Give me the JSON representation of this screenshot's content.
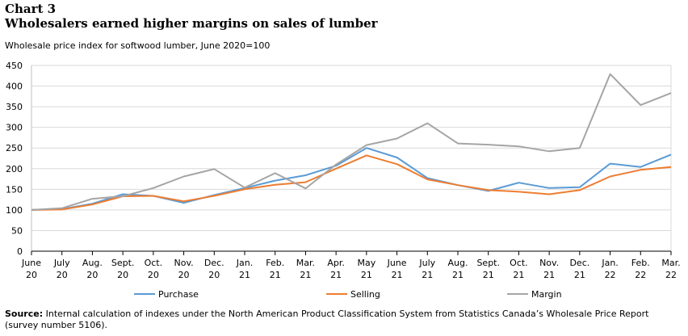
{
  "header": {
    "chart_label": "Chart 3",
    "title": "Wholesalers earned higher  margins on sales of lumber",
    "subtitle": "Wholesale price index for softwood lumber, June 2020=100"
  },
  "source": {
    "label": "Source:",
    "text": " Internal calculation of indexes under the North American Product Classification System from Statistics Canada’s Wholesale Price Report (survey number 5106)."
  },
  "chart_data": {
    "type": "line",
    "categories": [
      [
        "June",
        "20"
      ],
      [
        "July",
        "20"
      ],
      [
        "Aug.",
        "20"
      ],
      [
        "Sept.",
        "20"
      ],
      [
        "Oct.",
        "20"
      ],
      [
        "Nov.",
        "20"
      ],
      [
        "Dec.",
        "20"
      ],
      [
        "Jan.",
        "21"
      ],
      [
        "Feb.",
        "21"
      ],
      [
        "Mar.",
        "21"
      ],
      [
        "Apr.",
        "21"
      ],
      [
        "May",
        "21"
      ],
      [
        "June",
        "21"
      ],
      [
        "July",
        "21"
      ],
      [
        "Aug.",
        "21"
      ],
      [
        "Sept.",
        "21"
      ],
      [
        "Oct.",
        "21"
      ],
      [
        "Nov.",
        "21"
      ],
      [
        "Dec.",
        "21"
      ],
      [
        "Jan.",
        "22"
      ],
      [
        "Feb.",
        "22"
      ],
      [
        "Mar.",
        "22"
      ]
    ],
    "ylim": [
      0,
      450
    ],
    "yticks": [
      0,
      50,
      100,
      150,
      200,
      250,
      300,
      350,
      400,
      450
    ],
    "grid": true,
    "legend_position": "bottom",
    "series": [
      {
        "name": "Purchase",
        "color": "#5b9bd5",
        "values": [
          100,
          102,
          115,
          138,
          134,
          117,
          136,
          153,
          171,
          184,
          207,
          250,
          227,
          177,
          160,
          146,
          166,
          153,
          155,
          212,
          204,
          234
        ]
      },
      {
        "name": "Selling",
        "color": "#ed7d31",
        "values": [
          100,
          101,
          113,
          133,
          134,
          121,
          134,
          150,
          161,
          167,
          200,
          232,
          211,
          174,
          160,
          148,
          144,
          138,
          148,
          181,
          197,
          204
        ]
      },
      {
        "name": "Margin",
        "color": "#a5a5a5",
        "values": [
          100,
          104,
          127,
          133,
          153,
          181,
          199,
          154,
          189,
          152,
          210,
          257,
          273,
          310,
          261,
          258,
          254,
          242,
          250,
          429,
          354,
          383
        ]
      }
    ]
  }
}
